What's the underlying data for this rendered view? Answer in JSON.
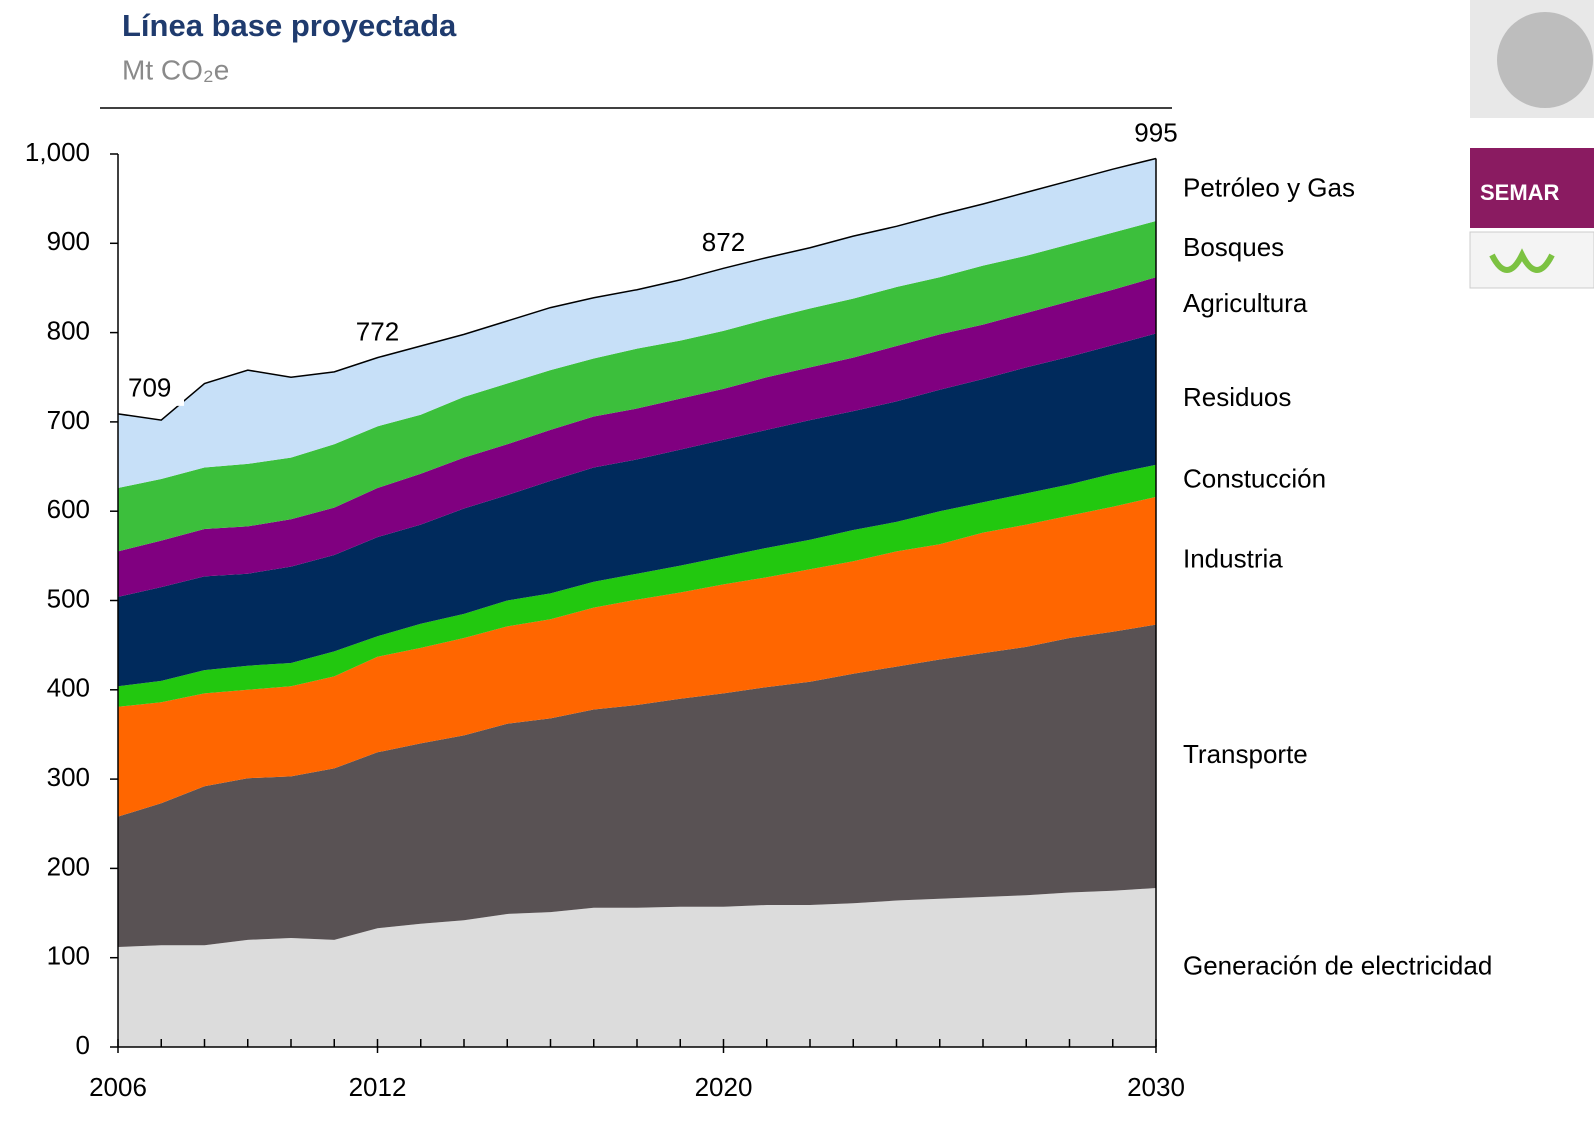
{
  "chart_data": {
    "type": "stacked_area",
    "title": "Línea base proyectada",
    "subtitle": "Mt CO₂e",
    "x": [
      2006,
      2007,
      2008,
      2009,
      2010,
      2011,
      2012,
      2013,
      2014,
      2015,
      2016,
      2017,
      2018,
      2019,
      2020,
      2021,
      2022,
      2023,
      2024,
      2025,
      2026,
      2027,
      2028,
      2029,
      2030
    ],
    "xlim": [
      2006,
      2030
    ],
    "xticks": [
      2006,
      2012,
      2020,
      2030
    ],
    "ylim": [
      0,
      1000
    ],
    "yticks": [
      0,
      100,
      200,
      300,
      400,
      500,
      600,
      700,
      800,
      900,
      {
        "value": 1000,
        "label": "1,000"
      }
    ],
    "series": [
      {
        "name": "Generación de electricidad",
        "color": "#dcdcdc",
        "values": [
          112,
          114,
          114,
          120,
          122,
          120,
          133,
          138,
          142,
          149,
          151,
          156,
          156,
          157,
          157,
          159,
          159,
          161,
          164,
          166,
          168,
          170,
          173,
          175,
          178
        ]
      },
      {
        "name": "Transporte",
        "color": "#595254",
        "values": [
          146,
          159,
          178,
          181,
          181,
          192,
          197,
          202,
          207,
          213,
          217,
          222,
          227,
          233,
          239,
          244,
          250,
          257,
          262,
          268,
          273,
          278,
          285,
          290,
          295
        ]
      },
      {
        "name": "Industria",
        "color": "#ff6600",
        "values": [
          123,
          113,
          104,
          99,
          101,
          103,
          107,
          107,
          109,
          109,
          111,
          114,
          118,
          119,
          122,
          123,
          126,
          126,
          129,
          129,
          135,
          137,
          137,
          140,
          143
        ]
      },
      {
        "name": "Constucción",
        "color": "#22c80f",
        "values": [
          23,
          24,
          26,
          27,
          26,
          28,
          23,
          27,
          27,
          29,
          29,
          29,
          29,
          30,
          31,
          33,
          33,
          35,
          33,
          37,
          34,
          35,
          35,
          37,
          36
        ]
      },
      {
        "name": "Residuos",
        "color": "#002a5c",
        "values": [
          100,
          105,
          105,
          103,
          108,
          108,
          111,
          111,
          118,
          118,
          126,
          128,
          128,
          130,
          131,
          132,
          134,
          133,
          135,
          136,
          138,
          141,
          143,
          144,
          147
        ]
      },
      {
        "name": "Agricultura",
        "color": "#800080",
        "values": [
          51,
          52,
          53,
          53,
          53,
          53,
          55,
          57,
          57,
          57,
          57,
          57,
          57,
          57,
          57,
          59,
          59,
          60,
          62,
          62,
          61,
          61,
          62,
          62,
          63
        ]
      },
      {
        "name": "Bosques",
        "color": "#3cbf3c",
        "values": [
          71,
          69,
          69,
          70,
          69,
          71,
          69,
          66,
          68,
          68,
          67,
          65,
          67,
          65,
          65,
          65,
          66,
          66,
          66,
          64,
          66,
          64,
          64,
          64,
          63
        ]
      },
      {
        "name": "Petróleo y Gas",
        "color": "#c7e0f8",
        "values": [
          83,
          66,
          94,
          105,
          90,
          81,
          77,
          77,
          70,
          70,
          70,
          68,
          66,
          68,
          70,
          69,
          68,
          70,
          68,
          70,
          69,
          71,
          71,
          71,
          70
        ]
      }
    ],
    "annotations": [
      {
        "x": 2006,
        "label": "709"
      },
      {
        "x": 2012,
        "label": "772"
      },
      {
        "x": 2020,
        "label": "872"
      },
      {
        "x": 2030,
        "label": "995"
      }
    ]
  },
  "logo": {
    "text": "SEMAR"
  }
}
